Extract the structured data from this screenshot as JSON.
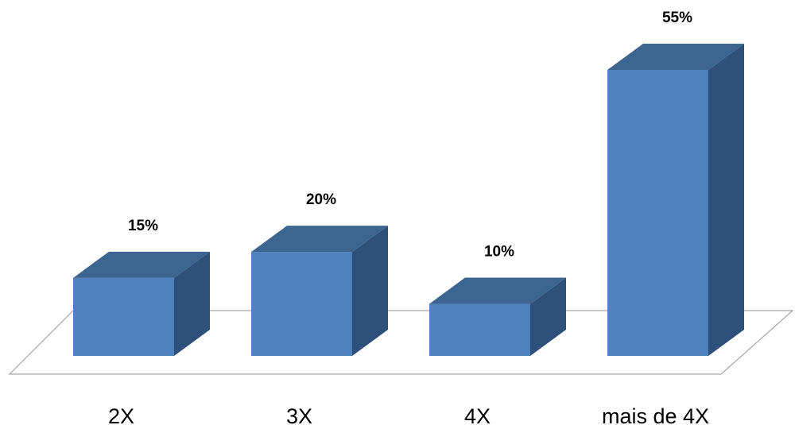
{
  "chart_data": {
    "type": "bar",
    "style": "3d-column",
    "categories": [
      "2X",
      "3X",
      "4X",
      "mais de 4X"
    ],
    "values": [
      15,
      20,
      10,
      55
    ],
    "value_labels": [
      "15%",
      "20%",
      "10%",
      "55%"
    ],
    "unit": "%",
    "ylim": [
      0,
      55
    ],
    "grid": false,
    "legend": "none",
    "colors": {
      "front": "#4F81BD",
      "top": "#3C6592",
      "side": "#2F507A",
      "floor": "#A6A6A6"
    }
  }
}
